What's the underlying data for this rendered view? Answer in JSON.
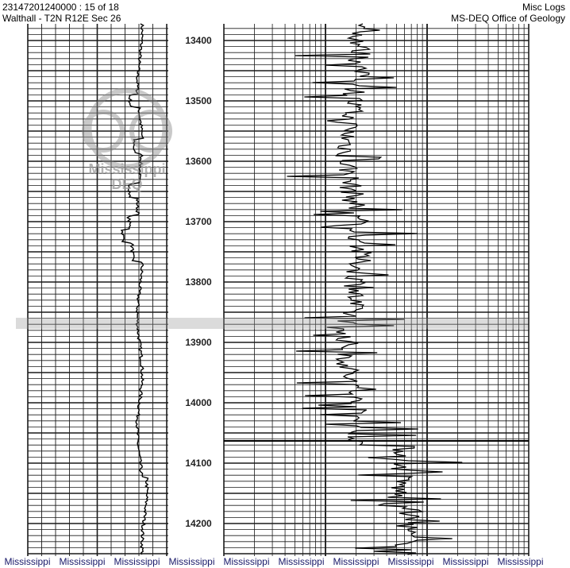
{
  "header": {
    "document_id": "23147201240000 : 15 of 18",
    "location": "Walthall - T2N R12E Sec 26",
    "category": "Misc Logs",
    "agency": "MS-DEQ Office of Geology"
  },
  "watermark": {
    "line1": "Mississippi",
    "line2": "DEQ"
  },
  "depth_labels": [
    "13400",
    "13500",
    "13600",
    "13700",
    "13800",
    "13900",
    "14000",
    "14100",
    "14200"
  ],
  "footer": {
    "items": [
      "Mississippi",
      "Mississippi",
      "Mississippi",
      "Mississippi",
      "Mississippi",
      "Mississippi",
      "Mississippi",
      "Mississippi",
      "Mississippi",
      "Mississippi"
    ]
  },
  "colors": {
    "grid": "#1a1a1a",
    "curve": "#000000",
    "footer_text": "#1a1a6a"
  }
}
